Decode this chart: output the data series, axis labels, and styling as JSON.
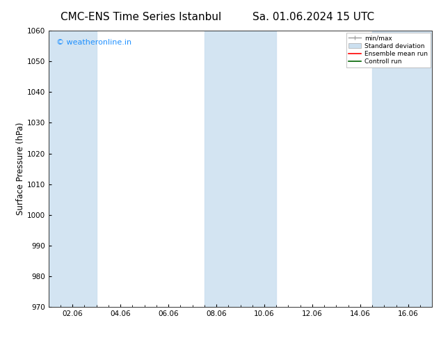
{
  "title": "CMC-ENS Time Series Istanbul",
  "title2": "Sa. 01.06.2024 15 UTC",
  "ylabel": "Surface Pressure (hPa)",
  "xlabel": "",
  "ylim": [
    970,
    1060
  ],
  "yticks": [
    970,
    980,
    990,
    1000,
    1010,
    1020,
    1030,
    1040,
    1050,
    1060
  ],
  "xtick_labels": [
    "02.06",
    "04.06",
    "06.06",
    "08.06",
    "10.06",
    "12.06",
    "14.06",
    "16.06"
  ],
  "xtick_positions": [
    2,
    4,
    6,
    8,
    10,
    12,
    14,
    16
  ],
  "xlim": [
    1,
    17
  ],
  "background_color": "#ffffff",
  "plot_bg_color": "#ffffff",
  "watermark_text": "© weatheronline.in",
  "watermark_color": "#1e90ff",
  "shade_bands": [
    {
      "x_start": 1.0,
      "x_end": 3.0,
      "color": "#cce0f0",
      "alpha": 0.85
    },
    {
      "x_start": 7.5,
      "x_end": 10.5,
      "color": "#cce0f0",
      "alpha": 0.85
    },
    {
      "x_start": 14.5,
      "x_end": 17.0,
      "color": "#cce0f0",
      "alpha": 0.85
    }
  ],
  "legend_labels": [
    "min/max",
    "Standard deviation",
    "Ensemble mean run",
    "Controll run"
  ],
  "title_fontsize": 11,
  "tick_fontsize": 7.5,
  "ylabel_fontsize": 8.5,
  "watermark_fontsize": 8
}
